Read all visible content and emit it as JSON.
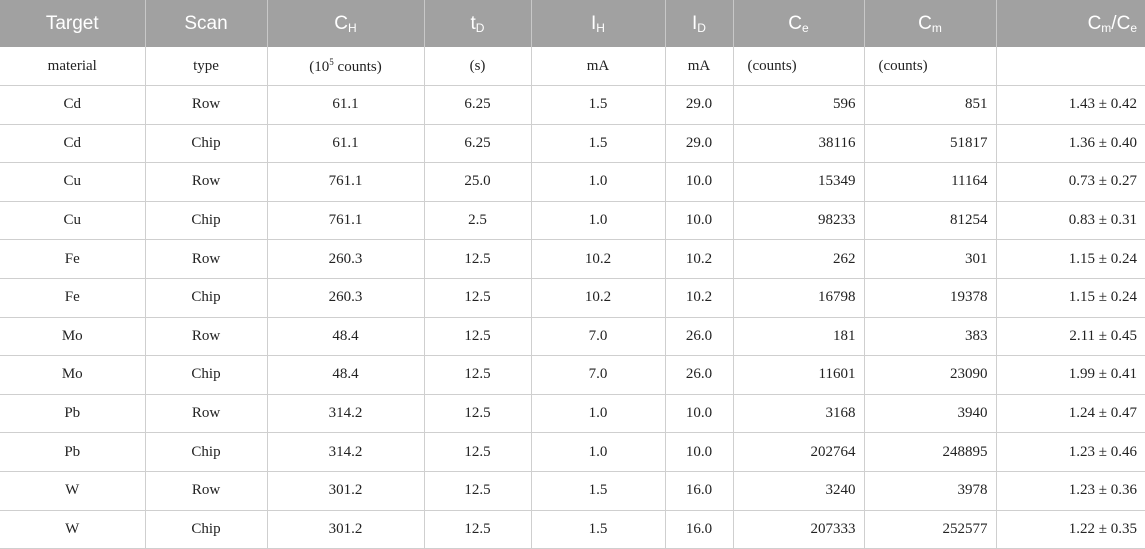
{
  "header": {
    "col0": "Target",
    "col1": "Scan",
    "col2": {
      "main": "C",
      "sub": "H"
    },
    "col3": {
      "main": "t",
      "sub": "D"
    },
    "col4": {
      "main": "I",
      "sub": "H"
    },
    "col5": {
      "main": "I",
      "sub": "D"
    },
    "col6": {
      "main": "C",
      "sub": "e"
    },
    "col7": {
      "main": "C",
      "sub": "m"
    },
    "col8": {
      "main1": "C",
      "sub1": "m",
      "slash": "/",
      "main2": "C",
      "sub2": "e"
    }
  },
  "units": {
    "col0": "material",
    "col1": "type",
    "col2": {
      "pre": "(10",
      "sup": "5",
      "post": " counts)"
    },
    "col3": "(s)",
    "col4": "mA",
    "col5": "mA",
    "col6": "(counts)",
    "col7": "(counts)",
    "col8": ""
  },
  "rows": [
    [
      "Cd",
      "Row",
      "61.1",
      "6.25",
      "1.5",
      "29.0",
      "596",
      "851",
      "1.43 ± 0.42"
    ],
    [
      "Cd",
      "Chip",
      "61.1",
      "6.25",
      "1.5",
      "29.0",
      "38116",
      "51817",
      "1.36 ± 0.40"
    ],
    [
      "Cu",
      "Row",
      "761.1",
      "25.0",
      "1.0",
      "10.0",
      "15349",
      "11164",
      "0.73 ± 0.27"
    ],
    [
      "Cu",
      "Chip",
      "761.1",
      "2.5",
      "1.0",
      "10.0",
      "98233",
      "81254",
      "0.83 ± 0.31"
    ],
    [
      "Fe",
      "Row",
      "260.3",
      "12.5",
      "10.2",
      "10.2",
      "262",
      "301",
      "1.15 ± 0.24"
    ],
    [
      "Fe",
      "Chip",
      "260.3",
      "12.5",
      "10.2",
      "10.2",
      "16798",
      "19378",
      "1.15 ± 0.24"
    ],
    [
      "Mo",
      "Row",
      "48.4",
      "12.5",
      "7.0",
      "26.0",
      "181",
      "383",
      "2.11 ± 0.45"
    ],
    [
      "Mo",
      "Chip",
      "48.4",
      "12.5",
      "7.0",
      "26.0",
      "11601",
      "23090",
      "1.99 ± 0.41"
    ],
    [
      "Pb",
      "Row",
      "314.2",
      "12.5",
      "1.0",
      "10.0",
      "3168",
      "3940",
      "1.24 ± 0.47"
    ],
    [
      "Pb",
      "Chip",
      "314.2",
      "12.5",
      "1.0",
      "10.0",
      "202764",
      "248895",
      "1.23 ± 0.46"
    ],
    [
      "W",
      "Row",
      "301.2",
      "12.5",
      "1.5",
      "16.0",
      "3240",
      "3978",
      "1.23 ± 0.36"
    ],
    [
      "W",
      "Chip",
      "301.2",
      "12.5",
      "1.5",
      "16.0",
      "207333",
      "252577",
      "1.22 ± 0.35"
    ]
  ]
}
